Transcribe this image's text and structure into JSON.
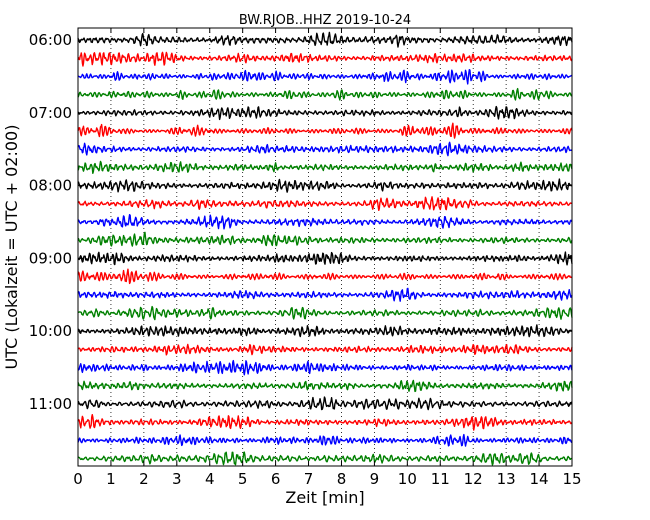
{
  "chart_data": {
    "type": "line",
    "title": "BW.RJOB..HHZ 2019-10-24",
    "xlabel": "Zeit  [min]",
    "ylabel": "UTC (Lokalzeit = UTC + 02:00)",
    "xlim": [
      0,
      15
    ],
    "x_ticks": [
      "0",
      "1",
      "2",
      "3",
      "4",
      "5",
      "6",
      "7",
      "8",
      "9",
      "10",
      "11",
      "12",
      "13",
      "14",
      "15"
    ],
    "y_ticks": [
      "06:00",
      "07:00",
      "08:00",
      "09:00",
      "10:00",
      "11:00"
    ],
    "trace_interval_min": 15,
    "first_trace_utc": "06:00",
    "trace_count": 24,
    "grid": "vertical dotted",
    "color_cycle": [
      "#000000",
      "#ff0000",
      "#0000ff",
      "#008000"
    ]
  }
}
